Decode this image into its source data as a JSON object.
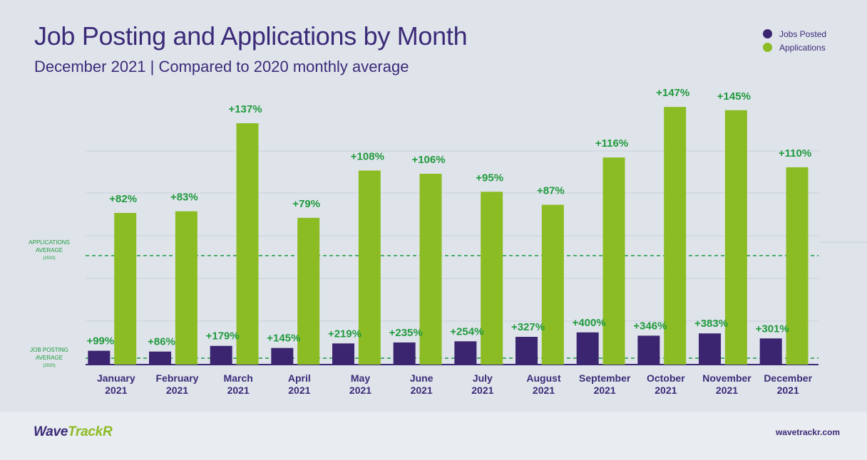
{
  "header": {
    "title": "Job Posting and Applications by Month",
    "subtitle": "December 2021 | Compared to 2020 monthly average"
  },
  "colors": {
    "jobs": "#3b2470",
    "applications": "#8cbc24",
    "pct_label": "#1f9a3c",
    "title": "#3b2a78",
    "avg_line": "#1f9a3c"
  },
  "legend": {
    "position": "top-right",
    "items": [
      {
        "label": "Jobs Posted",
        "color": "#3b2470"
      },
      {
        "label": "Applications",
        "color": "#8cbc24"
      }
    ]
  },
  "averages": {
    "applications": {
      "line1": "APPLICATIONS",
      "line2": "AVERAGE",
      "line3": "(2020)"
    },
    "jobs": {
      "line1": "JOB POSTING",
      "line2": "AVERAGE",
      "line3": "(2020)"
    }
  },
  "footer": {
    "logo_part1": "Wave",
    "logo_part2": "TrackR",
    "site": "wavetrackr.com"
  },
  "chart_data": {
    "type": "bar",
    "categories": [
      [
        "January",
        "2021"
      ],
      [
        "February",
        "2021"
      ],
      [
        "March",
        "2021"
      ],
      [
        "April",
        "2021"
      ],
      [
        "May",
        "2021"
      ],
      [
        "June",
        "2021"
      ],
      [
        "July",
        "2021"
      ],
      [
        "August",
        "2021"
      ],
      [
        "September",
        "2021"
      ],
      [
        "October",
        "2021"
      ],
      [
        "November",
        "2021"
      ],
      [
        "December",
        "2021"
      ]
    ],
    "series": [
      {
        "name": "Jobs Posted",
        "pct_change_vs_2020_avg": [
          99,
          86,
          179,
          145,
          219,
          235,
          254,
          327,
          400,
          346,
          383,
          301
        ],
        "labels": [
          "+99%",
          "+86%",
          "+179%",
          "+145%",
          "+219%",
          "+235%",
          "+254%",
          "+327%",
          "+400%",
          "+346%",
          "+383%",
          "+301%"
        ]
      },
      {
        "name": "Applications",
        "pct_change_vs_2020_avg": [
          82,
          83,
          137,
          79,
          108,
          106,
          95,
          87,
          116,
          147,
          145,
          110
        ],
        "labels": [
          "+82%",
          "+83%",
          "+137%",
          "+79%",
          "+108%",
          "+106%",
          "+95%",
          "+87%",
          "+116%",
          "+147%",
          "+145%",
          "+110%"
        ]
      }
    ],
    "ylabel": "",
    "grid": true
  }
}
